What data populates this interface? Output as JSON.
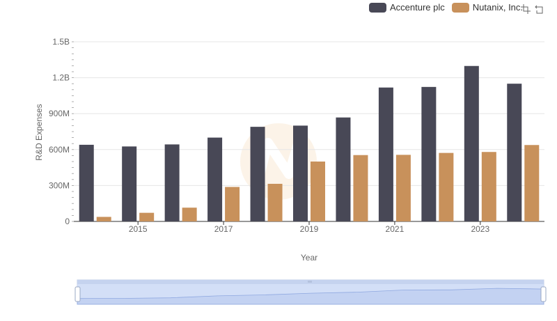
{
  "legend": {
    "items": [
      {
        "label": "Accenture plc",
        "color": "#484856"
      },
      {
        "label": "Nutanix, Inc.",
        "color": "#c8915b"
      }
    ]
  },
  "toolbox": {
    "icons": [
      "zoom-icon",
      "restore-icon"
    ]
  },
  "chart_data": {
    "type": "bar",
    "xlabel": "Year",
    "ylabel": "R&D Expenses",
    "categories": [
      "2014",
      "2015",
      "2016",
      "2017",
      "2018",
      "2019",
      "2020",
      "2021",
      "2022",
      "2023",
      "2024"
    ],
    "xtick_labels": [
      "2015",
      "2017",
      "2019",
      "2021",
      "2023"
    ],
    "ylim": [
      0,
      1500000000
    ],
    "ytick_labels": [
      "0",
      "300M",
      "600M",
      "900M",
      "1.2B",
      "1.5B"
    ],
    "yticks": [
      0,
      300000000,
      600000000,
      900000000,
      1200000000,
      1500000000
    ],
    "grid": true,
    "legend_position": "top-right",
    "series": [
      {
        "name": "Accenture plc",
        "color": "#484856",
        "values": [
          640000000,
          626000000,
          643000000,
          700000000,
          790000000,
          800000000,
          868000000,
          1118000000,
          1123000000,
          1298000000,
          1150000000
        ]
      },
      {
        "name": "Nutanix, Inc.",
        "color": "#c8915b",
        "values": [
          38000000,
          72000000,
          115000000,
          288000000,
          314000000,
          500000000,
          554000000,
          556000000,
          572000000,
          580000000,
          638000000
        ]
      }
    ]
  }
}
